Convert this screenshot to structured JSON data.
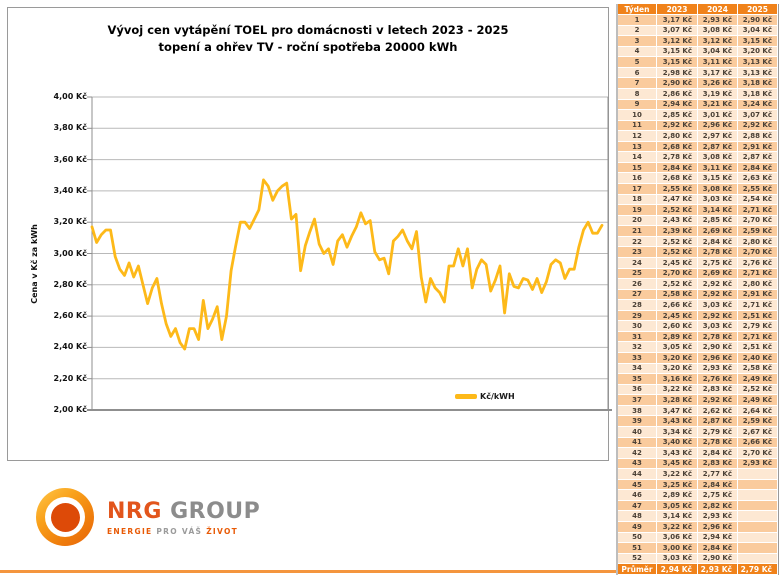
{
  "chart_panel": {
    "title_line1": "Vývoj cen vytápění TOEL pro domácnosti v letech 2023 - 2025",
    "title_line2": "topení a ohřev TV - roční spotřeba 20000 kWh",
    "ylabel": "Cena v Kč za kWh",
    "legend_label": "Kč/kWH"
  },
  "chart_data": {
    "type": "line",
    "title": "Vývoj cen vytápění TOEL pro domácnosti v letech 2023 - 2025",
    "subtitle": "topení a ohřev TV - roční spotřeba 20000 kWh",
    "ylabel": "Cena v Kč za kWh",
    "legend": [
      "Kč/kWH"
    ],
    "legend_position": "bottom-right-inside",
    "grid": true,
    "ylim": [
      2.0,
      4.0
    ],
    "ytick_step": 0.2,
    "x_unit": "týden (weeks of 2023, 2024 and 2025 concatenated)",
    "line_color": "#FDB919",
    "series": [
      {
        "name": "2023",
        "values": [
          3.17,
          3.07,
          3.12,
          3.15,
          3.15,
          2.98,
          2.9,
          2.86,
          2.94,
          2.85,
          2.92,
          2.8,
          2.68,
          2.78,
          2.84,
          2.68,
          2.55,
          2.47,
          2.52,
          2.43,
          2.39,
          2.52,
          2.52,
          2.45,
          2.7,
          2.52,
          2.58,
          2.66,
          2.45,
          2.6,
          2.89,
          3.05,
          3.2,
          3.2,
          3.16,
          3.22,
          3.28,
          3.47,
          3.43,
          3.34,
          3.4,
          3.43,
          3.45,
          3.22,
          3.25,
          2.89,
          3.05,
          3.14,
          3.22,
          3.06,
          3.0,
          3.03
        ]
      },
      {
        "name": "2024",
        "values": [
          2.93,
          3.08,
          3.12,
          3.04,
          3.11,
          3.17,
          3.26,
          3.19,
          3.21,
          3.01,
          2.96,
          2.97,
          2.87,
          3.08,
          3.11,
          3.15,
          3.08,
          3.03,
          3.14,
          2.85,
          2.69,
          2.84,
          2.78,
          2.75,
          2.69,
          2.92,
          2.92,
          3.03,
          2.92,
          3.03,
          2.78,
          2.9,
          2.96,
          2.93,
          2.76,
          2.83,
          2.92,
          2.62,
          2.87,
          2.79,
          2.78,
          2.84,
          2.83,
          2.77,
          2.84,
          2.75,
          2.82,
          2.93,
          2.96,
          2.94,
          2.84,
          2.9
        ]
      },
      {
        "name": "2025",
        "values": [
          2.9,
          3.04,
          3.15,
          3.2,
          3.13,
          3.13,
          3.18,
          3.18,
          3.24,
          3.07,
          2.92,
          2.88,
          2.91,
          2.87,
          2.84,
          2.63,
          2.55,
          2.54,
          2.71,
          2.7,
          2.59,
          2.8,
          2.7,
          2.76,
          2.71,
          2.8,
          2.91,
          2.71,
          2.51,
          2.79,
          2.71,
          2.51,
          2.4,
          2.58,
          2.49,
          2.52,
          2.49,
          2.64,
          2.59,
          2.67,
          2.66,
          2.7,
          2.93
        ]
      }
    ],
    "plotted_points": {
      "2023": 52,
      "2024": 52,
      "2025": 7
    }
  },
  "table": {
    "header": [
      "Týden",
      "2023",
      "2024",
      "2025"
    ],
    "week_count": 52,
    "value_suffix": " Kč",
    "footer_label": "Průměr",
    "footer_values": [
      "2,94 Kč",
      "2,93 Kč",
      "2,79 Kč"
    ]
  },
  "logo": {
    "name_part1": "NRG",
    "name_part2": "GROUP",
    "tagline_part1": "ENERGIE",
    "tagline_part2": "PRO VÁŠ",
    "tagline_part3": "ŽIVOT"
  },
  "colors": {
    "line": "#FDB919",
    "table_header_bg": "#F0821A",
    "row_dark": "#FACB9D",
    "row_light": "#FDE8D3",
    "footer_divider": "#F4953E",
    "logo_orange": "#E2551C",
    "logo_gray": "#8C8C8C"
  }
}
